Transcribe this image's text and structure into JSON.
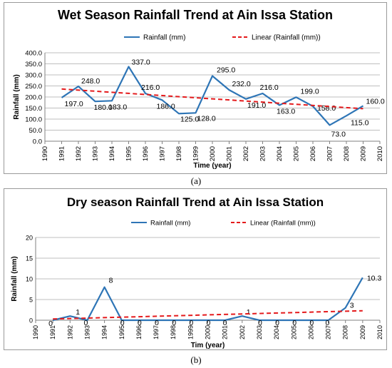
{
  "chart_data": [
    {
      "type": "line",
      "title": "Wet Season Rainfall Trend at Ain Issa Station",
      "xlabel": "Time (year)",
      "ylabel": "Rainfall (mm)",
      "xlim": [
        1990,
        2010
      ],
      "ylim": [
        0,
        400
      ],
      "x_ticks": [
        "1990",
        "1991",
        "1992",
        "1993",
        "1994",
        "1995",
        "1996",
        "1997",
        "1998",
        "1999",
        "2000",
        "2001",
        "2002",
        "2003",
        "2004",
        "2005",
        "2006",
        "2007",
        "2008",
        "2009",
        "2010"
      ],
      "y_ticks": [
        "0.0",
        "50.0",
        "100.0",
        "150.0",
        "200.0",
        "250.0",
        "300.0",
        "350.0",
        "400.0"
      ],
      "grid": "horizontal",
      "legend_position": "top-right",
      "legend": [
        "Rainfall (mm)",
        "Linear (Rainfall (mm))"
      ],
      "series": [
        {
          "name": "Rainfall (mm)",
          "color": "#2e75b6",
          "x": [
            1991,
            1992,
            1993,
            1994,
            1995,
            1996,
            1997,
            1998,
            1999,
            2000,
            2001,
            2002,
            2003,
            2004,
            2005,
            2006,
            2007,
            2008,
            2009
          ],
          "values": [
            197,
            248,
            180,
            183,
            337,
            216,
            186,
            125,
            128,
            295,
            232,
            191,
            216,
            163,
            199,
            158,
            73,
            115,
            160
          ],
          "labels": [
            "197.0",
            "248.0",
            "180.0",
            "183.0",
            "337.0",
            "216.0",
            "186.0",
            "125.0",
            "128.0",
            "295.0",
            "232.0",
            "191.0",
            "216.0",
            "163.0",
            "199.0",
            "158.0",
            "73.0",
            "115.0",
            "160.0"
          ]
        },
        {
          "name": "Linear (Rainfall (mm))",
          "color": "#e41a1c",
          "style": "dashed",
          "x": [
            1991,
            2009
          ],
          "values": [
            236,
            147
          ]
        }
      ]
    },
    {
      "type": "line",
      "title": "Dry season Rainfall Trend at Ain Issa Station",
      "xlabel": "Tim (year)",
      "ylabel": "Rainfall (mm)",
      "xlim": [
        1990,
        2010
      ],
      "ylim": [
        0,
        20
      ],
      "x_ticks": [
        "1990",
        "1991",
        "1992",
        "1993",
        "1994",
        "1995",
        "1996",
        "1997",
        "1998",
        "1999",
        "2000",
        "2001",
        "2002",
        "2003",
        "2004",
        "2005",
        "2006",
        "2007",
        "2008",
        "2009",
        "2010"
      ],
      "y_ticks": [
        "0",
        "5",
        "10",
        "15",
        "20"
      ],
      "grid": "horizontal",
      "legend_position": "top",
      "legend": [
        "Rainfall (mm)",
        "Linear (Rainfall (mm))"
      ],
      "series": [
        {
          "name": "Rainfall (mm)",
          "color": "#2e75b6",
          "x": [
            1991,
            1992,
            1993,
            1994,
            1995,
            1996,
            1997,
            1998,
            1999,
            2000,
            2001,
            2002,
            2003,
            2004,
            2005,
            2006,
            2007,
            2008,
            2009
          ],
          "values": [
            0,
            1,
            0,
            8,
            0,
            0,
            0,
            0,
            0,
            0,
            0,
            1,
            0,
            0,
            0,
            0,
            0,
            3,
            10.3
          ],
          "labels": [
            "0",
            "1",
            "0",
            "8",
            "0",
            "0",
            "0",
            "0",
            "0",
            "0",
            "0",
            "1",
            "0",
            "0",
            "0",
            "0",
            "0",
            "3",
            "10.3"
          ]
        },
        {
          "name": "Linear (Rainfall (mm))",
          "color": "#e41a1c",
          "style": "dashed",
          "x": [
            1991,
            2009
          ],
          "values": [
            0.3,
            2.3
          ]
        }
      ]
    }
  ],
  "captions": [
    "(a)",
    "(b)"
  ]
}
